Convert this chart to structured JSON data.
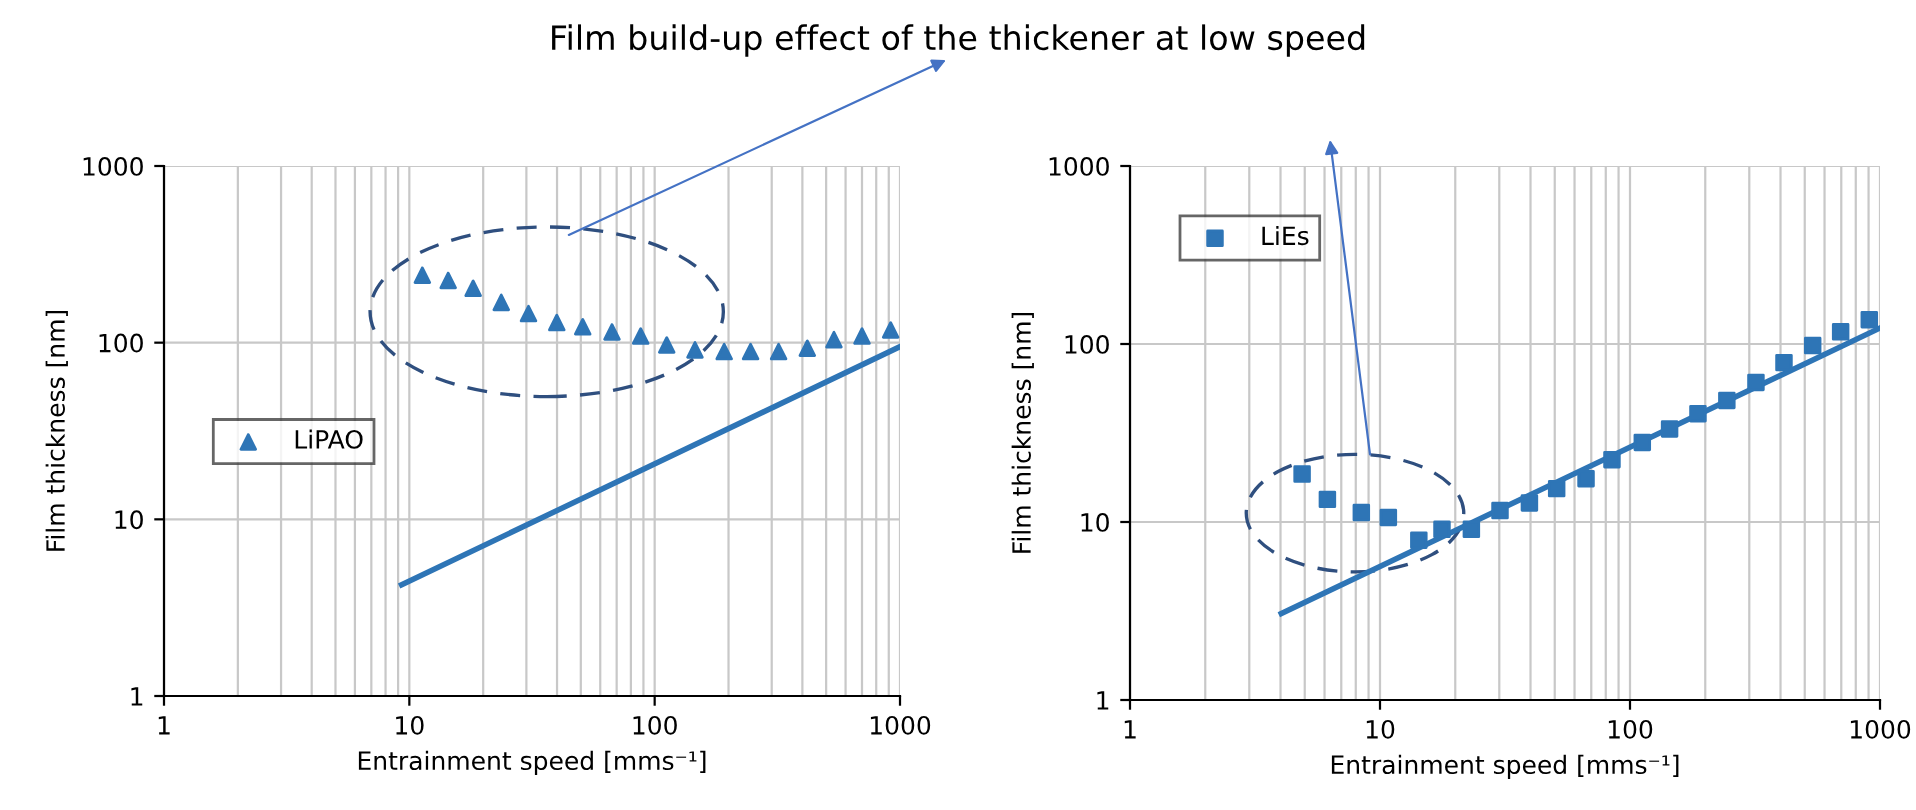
{
  "chart_data": [
    {
      "type": "scatter",
      "title": "Film build-up effect of the thickener at low speed",
      "xlabel": "Entrainment speed [mms⁻¹]",
      "ylabel": "Film thickness [nm]",
      "log": "xy",
      "xlim": [
        1,
        1000
      ],
      "ylim": [
        1,
        1000
      ],
      "xticks": [
        1,
        10,
        100,
        1000
      ],
      "yticks": [
        1,
        10,
        100,
        1000
      ],
      "grid": true,
      "legend": "left",
      "series": [
        {
          "name": "LiPAO",
          "color": "#2e75b6",
          "marker": "triangle",
          "x": [
            11.3,
            14.4,
            18.2,
            23.7,
            30.6,
            39.9,
            50.9,
            67,
            87.7,
            112,
            146,
            192,
            246,
            320,
            419,
            538,
            700,
            916
          ],
          "values": [
            241,
            225,
            203,
            169,
            146,
            130,
            123,
            115,
            109,
            97,
            91,
            89,
            89,
            89,
            93,
            104,
            109,
            118
          ]
        },
        {
          "type": "line",
          "color": "#2e75b6",
          "x": [
            9.3,
            1000
          ],
          "values": [
            4.26,
            95
          ]
        }
      ]
    },
    {
      "type": "scatter",
      "xlabel": "Entrainment speed [mms⁻¹]",
      "ylabel": "Film thickness [nm]",
      "log": "xy",
      "xlim": [
        1,
        1000
      ],
      "ylim": [
        1,
        1000
      ],
      "xticks": [
        1,
        10,
        100,
        1000
      ],
      "yticks": [
        1,
        10,
        100,
        1000
      ],
      "grid": true,
      "legend": "top left",
      "series": [
        {
          "name": "LiEs",
          "color": "#2e75b6",
          "marker": "square",
          "x": [
            4.88,
            6.16,
            8.42,
            10.8,
            14.3,
            17.7,
            23.2,
            30.2,
            39.6,
            50.9,
            66.7,
            84.7,
            112,
            144,
            187,
            244,
            319,
            413,
            538,
            696,
            906
          ],
          "values": [
            18.6,
            13.4,
            11.3,
            10.6,
            7.9,
            9.1,
            9.1,
            11.6,
            12.8,
            15.4,
            17.5,
            22.4,
            28.0,
            33.3,
            40.6,
            48.2,
            60.8,
            78.6,
            98,
            117,
            137
          ]
        },
        {
          "type": "line",
          "color": "#2e75b6",
          "x": [
            4.03,
            1000
          ],
          "values": [
            3.06,
            123
          ]
        }
      ]
    }
  ]
}
